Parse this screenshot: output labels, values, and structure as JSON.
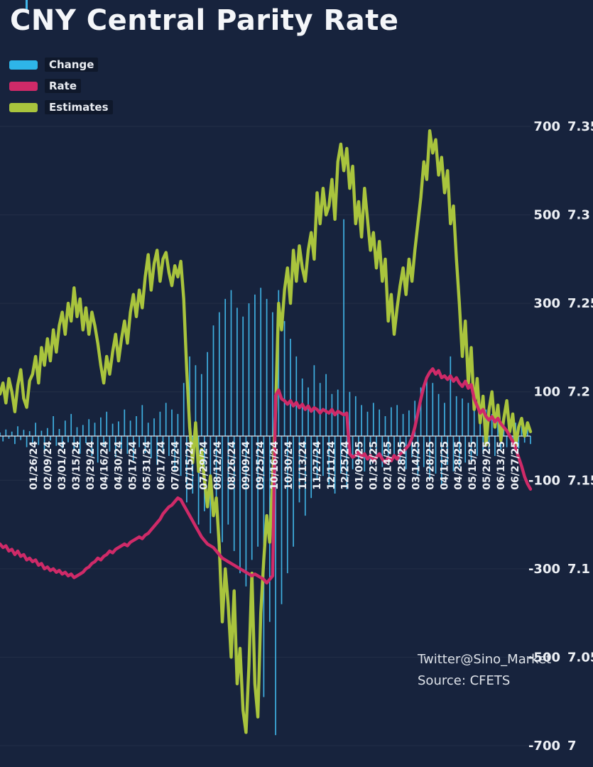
{
  "page": {
    "background": "#17233d"
  },
  "title": "CNY Central Parity Rate",
  "legend": [
    {
      "label": "Change",
      "color": "#2eb5e8"
    },
    {
      "label": "Rate",
      "color": "#cf2a68"
    },
    {
      "label": "Estimates",
      "color": "#a9c43d"
    }
  ],
  "watermark": {
    "line1": "Twitter@Sino_Market",
    "line2": "Source: CFETS"
  },
  "chart_data": {
    "type": "bar+line combo",
    "title": "CNY Central Parity Rate",
    "grid": "faint horizontal",
    "legend_position": "top-left",
    "x_tick_labels": [
      "01/26/24",
      "02/09/24",
      "03/01/24",
      "03/15/24",
      "03/29/24",
      "04/16/24",
      "04/30/24",
      "05/17/24",
      "05/31/24",
      "06/17/24",
      "07/01/24",
      "07/15/24",
      "07/29/24",
      "08/12/24",
      "08/26/24",
      "09/09/24",
      "09/25/24",
      "10/16/24",
      "10/30/24",
      "11/13/24",
      "11/27/24",
      "12/11/24",
      "12/25/24",
      "01/09/25",
      "01/23/25",
      "02/14/25",
      "02/28/25",
      "03/14/25",
      "03/28/25",
      "04/14/25",
      "04/28/25",
      "05/15/25",
      "05/29/25",
      "06/13/25",
      "06/27/25"
    ],
    "axes": {
      "change_axis": {
        "side": "right-inner",
        "range": [
          -700,
          700
        ]
      },
      "rate_axis": {
        "side": "right-outer",
        "range": [
          7.0,
          7.35
        ]
      },
      "ticks": [
        {
          "change": 700,
          "change_label": "700",
          "rate_label": "7.35"
        },
        {
          "change": 500,
          "change_label": "500",
          "rate_label": "7.3"
        },
        {
          "change": 300,
          "change_label": "300",
          "rate_label": "7.25"
        },
        {
          "change": 100,
          "change_label": "100",
          "rate_label": "7.2"
        },
        {
          "change": -100,
          "change_label": "-100",
          "rate_label": "7.15"
        },
        {
          "change": -300,
          "change_label": "-300",
          "rate_label": "7.1"
        },
        {
          "change": -500,
          "change_label": "-500",
          "rate_label": "7.05"
        },
        {
          "change": -700,
          "change_label": "-700",
          "rate_label": "7"
        }
      ]
    },
    "series": [
      {
        "name": "Change",
        "type": "bar",
        "axis": "change",
        "color": "#41b7e9",
        "values": [
          8,
          -12,
          15,
          -6,
          10,
          -18,
          22,
          -9,
          14,
          -25,
          11,
          -15,
          30,
          -20,
          12,
          -35,
          18,
          -10,
          45,
          -22,
          16,
          -28,
          35,
          -14,
          50,
          -30,
          20,
          -40,
          25,
          -16,
          38,
          -45,
          30,
          -60,
          42,
          -25,
          55,
          -35,
          28,
          -48,
          33,
          -30,
          60,
          -40,
          35,
          -55,
          45,
          -25,
          70,
          -38,
          30,
          -50,
          40,
          -65,
          55,
          -35,
          75,
          -45,
          60,
          -80,
          50,
          -90,
          120,
          -150,
          180,
          -130,
          160,
          -200,
          140,
          -170,
          190,
          -220,
          250,
          -180,
          280,
          -240,
          310,
          -200,
          330,
          -260,
          290,
          -310,
          270,
          -340,
          300,
          -280,
          320,
          -250,
          335,
          -590,
          310,
          -420,
          280,
          -676,
          330,
          -380,
          260,
          -310,
          220,
          -250,
          180,
          -150,
          130,
          -180,
          110,
          -140,
          160,
          -100,
          120,
          -90,
          140,
          -110,
          95,
          -130,
          105,
          -85,
          490,
          -120,
          100,
          -75,
          90,
          -60,
          70,
          -80,
          55,
          -65,
          75,
          -50,
          60,
          -70,
          45,
          -55,
          65,
          -45,
          70,
          -60,
          50,
          -75,
          58,
          -48,
          80,
          -90,
          110,
          -70,
          130,
          -100,
          120,
          -85,
          95,
          -110,
          75,
          -65,
          180,
          -80,
          90,
          -70,
          85,
          -60,
          75,
          -55,
          65,
          -45,
          55,
          -40,
          60,
          -35,
          50,
          -45,
          40,
          -30,
          45,
          -25,
          35,
          -20,
          30,
          -28,
          22,
          -15,
          25,
          -18
        ]
      },
      {
        "name": "Rate",
        "type": "line",
        "axis": "rate",
        "color": "#cf2a68",
        "values": [
          7.114,
          7.112,
          7.113,
          7.11,
          7.111,
          7.108,
          7.11,
          7.107,
          7.108,
          7.105,
          7.106,
          7.104,
          7.105,
          7.102,
          7.103,
          7.1,
          7.101,
          7.099,
          7.1,
          7.098,
          7.099,
          7.097,
          7.098,
          7.096,
          7.097,
          7.095,
          7.096,
          7.097,
          7.098,
          7.1,
          7.101,
          7.103,
          7.104,
          7.106,
          7.105,
          7.107,
          7.108,
          7.11,
          7.109,
          7.111,
          7.112,
          7.113,
          7.114,
          7.113,
          7.115,
          7.116,
          7.117,
          7.118,
          7.117,
          7.119,
          7.12,
          7.122,
          7.124,
          7.126,
          7.128,
          7.131,
          7.133,
          7.135,
          7.136,
          7.138,
          7.14,
          7.139,
          7.136,
          7.133,
          7.13,
          7.127,
          7.124,
          7.121,
          7.118,
          7.116,
          7.114,
          7.113,
          7.112,
          7.11,
          7.108,
          7.106,
          7.105,
          7.104,
          7.103,
          7.102,
          7.101,
          7.1,
          7.099,
          7.098,
          7.097,
          7.096,
          7.097,
          7.096,
          7.095,
          7.094,
          7.092,
          7.094,
          7.096,
          7.198,
          7.201,
          7.196,
          7.195,
          7.193,
          7.195,
          7.192,
          7.194,
          7.191,
          7.193,
          7.19,
          7.192,
          7.189,
          7.191,
          7.19,
          7.188,
          7.19,
          7.189,
          7.188,
          7.19,
          7.187,
          7.189,
          7.188,
          7.187,
          7.188,
          7.165,
          7.163,
          7.164,
          7.166,
          7.163,
          7.165,
          7.162,
          7.164,
          7.161,
          7.163,
          7.165,
          7.162,
          7.16,
          7.163,
          7.161,
          7.164,
          7.162,
          7.165,
          7.166,
          7.168,
          7.17,
          7.174,
          7.18,
          7.188,
          7.196,
          7.203,
          7.208,
          7.211,
          7.213,
          7.21,
          7.212,
          7.208,
          7.209,
          7.207,
          7.209,
          7.206,
          7.208,
          7.205,
          7.203,
          7.206,
          7.202,
          7.204,
          7.196,
          7.192,
          7.188,
          7.19,
          7.186,
          7.184,
          7.186,
          7.183,
          7.185,
          7.182,
          7.18,
          7.178,
          7.175,
          7.172,
          7.168,
          7.163,
          7.158,
          7.152,
          7.148,
          7.145
        ]
      },
      {
        "name": "Estimates",
        "type": "line",
        "axis": "change",
        "color": "#a9c43d",
        "values": [
          95,
          120,
          75,
          130,
          100,
          55,
          115,
          150,
          85,
          65,
          125,
          140,
          180,
          120,
          200,
          160,
          220,
          170,
          240,
          190,
          250,
          280,
          230,
          300,
          260,
          335,
          270,
          310,
          240,
          290,
          230,
          280,
          250,
          210,
          160,
          120,
          180,
          140,
          190,
          230,
          170,
          220,
          260,
          210,
          280,
          320,
          270,
          330,
          290,
          360,
          410,
          330,
          390,
          420,
          350,
          400,
          415,
          370,
          340,
          385,
          360,
          395,
          310,
          150,
          20,
          -60,
          30,
          -80,
          -30,
          -100,
          -160,
          -90,
          -180,
          -140,
          -250,
          -420,
          -300,
          -380,
          -500,
          -350,
          -560,
          -480,
          -620,
          -670,
          -520,
          -310,
          -560,
          -635,
          -400,
          -280,
          -180,
          -240,
          -100,
          60,
          300,
          240,
          330,
          380,
          300,
          420,
          350,
          430,
          380,
          350,
          420,
          460,
          400,
          550,
          480,
          560,
          500,
          520,
          580,
          490,
          620,
          660,
          600,
          650,
          560,
          610,
          480,
          530,
          450,
          560,
          490,
          420,
          460,
          380,
          440,
          350,
          400,
          260,
          320,
          230,
          290,
          340,
          380,
          320,
          400,
          350,
          420,
          480,
          540,
          620,
          580,
          690,
          640,
          670,
          590,
          630,
          550,
          600,
          480,
          520,
          400,
          300,
          180,
          260,
          120,
          200,
          60,
          130,
          30,
          90,
          -20,
          60,
          100,
          20,
          70,
          -10,
          40,
          80,
          10,
          50,
          -20,
          20,
          40,
          0,
          30,
          10
        ]
      }
    ]
  }
}
